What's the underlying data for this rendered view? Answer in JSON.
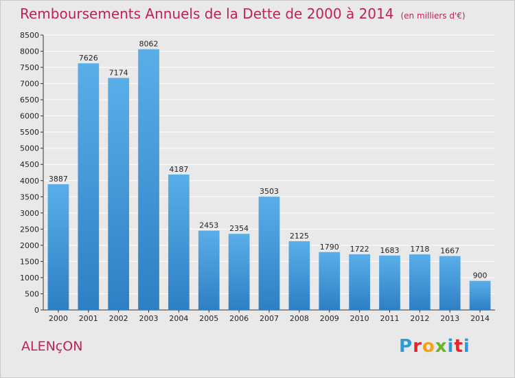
{
  "header": {
    "title": "Remboursements Annuels de la Dette de 2000 à 2014",
    "subtitle": "(en milliers d'€)"
  },
  "footer": {
    "commune": "ALENçON",
    "brand": [
      "P",
      "r",
      "o",
      "x",
      "i",
      "t",
      "i"
    ]
  },
  "colors": {
    "title": "#bf1f5a",
    "bar_top": "#5aaee8",
    "bar_bottom": "#2f7fc4",
    "background": "#e9e9e9",
    "grid": "#ffffff"
  },
  "chart_data": {
    "type": "bar",
    "title": "Remboursements Annuels de la Dette de 2000 à 2014",
    "subtitle": "(en milliers d'€)",
    "categories": [
      "2000",
      "2001",
      "2002",
      "2003",
      "2004",
      "2005",
      "2006",
      "2007",
      "2008",
      "2009",
      "2010",
      "2011",
      "2012",
      "2013",
      "2014"
    ],
    "values": [
      3887,
      7626,
      7174,
      8062,
      4187,
      2453,
      2354,
      3503,
      2125,
      1790,
      1722,
      1683,
      1718,
      1667,
      900
    ],
    "xlabel": "",
    "ylabel": "",
    "ylim": [
      0,
      8500
    ],
    "yticks": [
      0,
      500,
      1000,
      1500,
      2000,
      2500,
      3000,
      3500,
      4000,
      4500,
      5000,
      5500,
      6000,
      6500,
      7000,
      7500,
      8000,
      8500
    ],
    "grid": true,
    "data_labels": true
  }
}
